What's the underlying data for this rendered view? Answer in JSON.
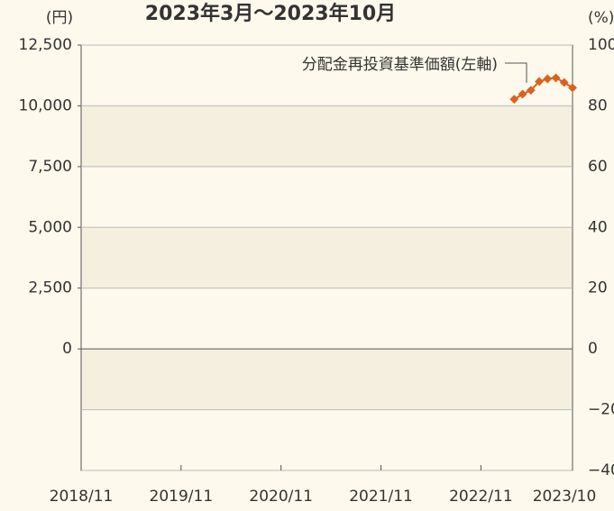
{
  "chart_data": {
    "type": "line",
    "title": "2023年3月〜2023年10月",
    "y_unit": "(円)",
    "y2_unit": "(%)",
    "annotation": "分配金再投資基準価額(左軸)",
    "xlim": [
      "2018/11",
      "2023/10"
    ],
    "xticks": [
      "2018/11",
      "2019/11",
      "2020/11",
      "2021/11",
      "2022/11",
      "2023/10"
    ],
    "ylim": [
      -5000,
      12500
    ],
    "yticks": [
      {
        "value": 0,
        "label": "0"
      },
      {
        "value": 2500,
        "label": "2,500"
      },
      {
        "value": 5000,
        "label": "5,000"
      },
      {
        "value": 7500,
        "label": "7,500"
      },
      {
        "value": 10000,
        "label": "10,000"
      },
      {
        "value": 12500,
        "label": "12,500"
      }
    ],
    "y2lim": [
      -40,
      100
    ],
    "y2ticks": [
      {
        "value": -40,
        "label": "−40"
      },
      {
        "value": -20,
        "label": "−20"
      },
      0,
      20,
      40,
      60,
      80,
      100
    ],
    "bands": true,
    "series": [
      {
        "name": "分配金再投資基準価額",
        "color": "#d9621e",
        "x": [
          "2023/03",
          "2023/04",
          "2023/05",
          "2023/06",
          "2023/07",
          "2023/08",
          "2023/09",
          "2023/10"
        ],
        "values": [
          10270,
          10480,
          10640,
          11000,
          11110,
          11150,
          10960,
          10740
        ]
      }
    ]
  }
}
